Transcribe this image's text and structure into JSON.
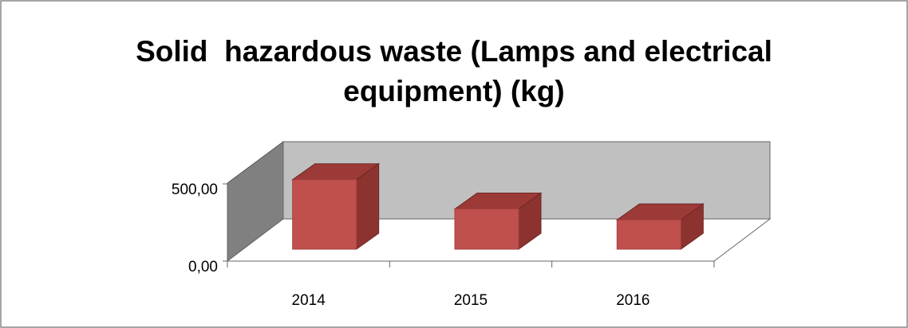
{
  "chart_data": {
    "type": "bar3d",
    "title": "Solid  hazardous waste (Lamps and electrical equipment) (kg)",
    "categories": [
      "2014",
      "2015",
      "2016"
    ],
    "values": [
      450,
      260,
      190
    ],
    "color": "#c0504d",
    "ylim": [
      0,
      500
    ],
    "yticks": [
      {
        "value": 0,
        "label": "0,00"
      },
      {
        "value": 500,
        "label": "500,00"
      }
    ]
  }
}
